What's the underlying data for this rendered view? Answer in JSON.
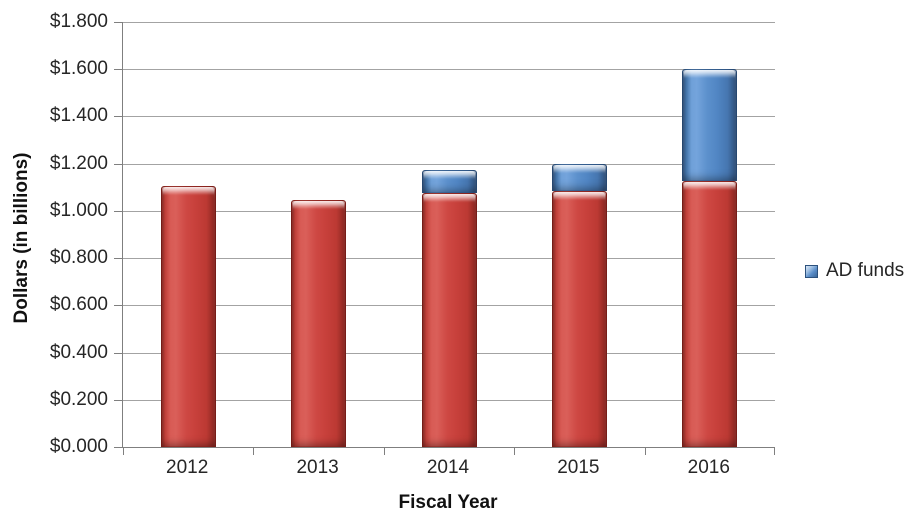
{
  "chart_data": {
    "type": "bar",
    "stacked": true,
    "categories": [
      "2012",
      "2013",
      "2014",
      "2015",
      "2016"
    ],
    "series": [
      {
        "name": "",
        "color": "#C9423D",
        "values": [
          1.105,
          1.045,
          1.075,
          1.085,
          1.125
        ]
      },
      {
        "name": "AD funds",
        "color": "#4F86C6",
        "values": [
          0,
          0,
          0.1,
          0.115,
          0.475
        ]
      }
    ],
    "title": "",
    "xlabel": "Fiscal Year",
    "ylabel": "Dollars (in billions)",
    "ylim": [
      0,
      1.8
    ],
    "ytick_step": 0.2,
    "ytick_labels": [
      "$0.000",
      "$0.200",
      "$0.400",
      "$0.600",
      "$0.800",
      "$1.000",
      "$1.200",
      "$1.400",
      "$1.600",
      "$1.800"
    ],
    "grid": true,
    "legend": {
      "position": "right",
      "entries": [
        "AD funds"
      ]
    },
    "colors": {
      "base_bar": "#C9423D",
      "ad_bar": "#4F86C6",
      "gridline": "#A3A3A3",
      "axis_line": "#7F7F7F",
      "text": "#262626"
    }
  }
}
